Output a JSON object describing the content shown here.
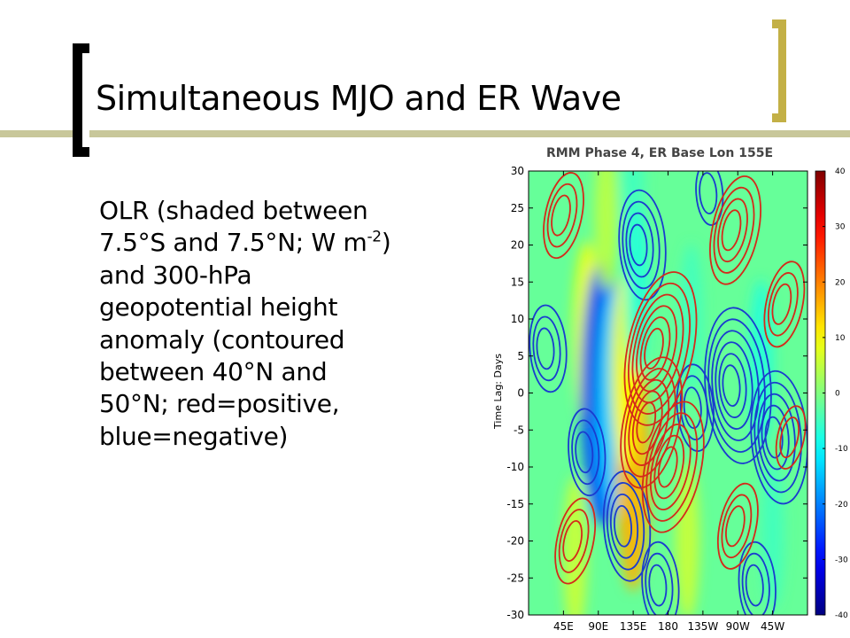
{
  "slide": {
    "title": "Simultaneous MJO and ER Wave",
    "body_lines": [
      {
        "text": "OLR (shaded between"
      },
      {
        "text": "7.5°S and 7.5°N; W m",
        "sup": "-2",
        "after": ")"
      },
      {
        "text": "and 300-hPa"
      },
      {
        "text": "geopotential height"
      },
      {
        "text": "anomaly (contoured"
      },
      {
        "text": "between 40°N and"
      },
      {
        "text": "50°N; red=positive,"
      },
      {
        "text": "blue=negative)"
      }
    ],
    "colors": {
      "title_bar": "#c8c79a",
      "right_bracket": "#c3b046",
      "left_bracket": "#000000"
    }
  },
  "chart_data": {
    "type": "heatmap",
    "title": "RMM Phase 4, ER Base Lon 155E",
    "xlabel": "",
    "ylabel": "Time Lag:  Days",
    "x_ticks": [
      "45E",
      "90E",
      "135E",
      "180",
      "135W",
      "90W",
      "45W"
    ],
    "x_tick_lons": [
      45,
      90,
      135,
      180,
      225,
      270,
      315
    ],
    "xlim": [
      0,
      360
    ],
    "y_ticks": [
      "30",
      "25",
      "20",
      "15",
      "10",
      "5",
      "0",
      "-5",
      "-10",
      "-15",
      "-20",
      "-25",
      "-30"
    ],
    "y_tick_values": [
      30,
      25,
      20,
      15,
      10,
      5,
      0,
      -5,
      -10,
      -15,
      -20,
      -25,
      -30
    ],
    "ylim": [
      -30,
      30
    ],
    "colorbar": {
      "ticks": [
        "40",
        "30",
        "20",
        "10",
        "0",
        "-10",
        "-20",
        "-30",
        "-40"
      ],
      "tick_values": [
        40,
        30,
        20,
        10,
        0,
        -10,
        -20,
        -30,
        -40
      ],
      "range": [
        -40,
        40
      ],
      "colormap": "jet"
    },
    "olr_features": [
      {
        "lon": 75,
        "lag": 8,
        "olr": 9
      },
      {
        "lon": 95,
        "lag": 0,
        "olr": -24
      },
      {
        "lon": 110,
        "lag": -1,
        "olr": -13
      },
      {
        "lon": 135,
        "lag": -10,
        "olr": 16
      },
      {
        "lon": 125,
        "lag": 3,
        "olr": 10
      },
      {
        "lon": 60,
        "lag": -22,
        "olr": 6
      },
      {
        "lon": 100,
        "lag": 24,
        "olr": 5
      },
      {
        "lon": 135,
        "lag": 27,
        "olr": -5
      },
      {
        "lon": 140,
        "lag": 14,
        "olr": -7
      },
      {
        "lon": 210,
        "lag": 10,
        "olr": -5
      },
      {
        "lon": 300,
        "lag": 4,
        "olr": -7
      },
      {
        "lon": 205,
        "lag": -20,
        "olr": 6
      },
      {
        "lon": 315,
        "lag": -19,
        "olr": -5
      }
    ],
    "height_contours": {
      "positive_color": "#d42a1a",
      "negative_color": "#1a3ccf",
      "positive_centers": [
        {
          "lon": 160,
          "lag": 6,
          "strength": 6
        },
        {
          "lon": 178,
          "lag": -10,
          "strength": 5
        },
        {
          "lon": 150,
          "lag": -4,
          "strength": 5
        },
        {
          "lon": 260,
          "lag": 22,
          "strength": 4
        },
        {
          "lon": 325,
          "lag": 12,
          "strength": 3
        },
        {
          "lon": 265,
          "lag": -18,
          "strength": 3
        },
        {
          "lon": 55,
          "lag": -20,
          "strength": 3
        },
        {
          "lon": 40,
          "lag": 24,
          "strength": 3
        },
        {
          "lon": 335,
          "lag": -6,
          "strength": 2
        }
      ],
      "negative_centers": [
        {
          "lon": 260,
          "lag": 1,
          "strength": 6
        },
        {
          "lon": 315,
          "lag": -6,
          "strength": 5
        },
        {
          "lon": 210,
          "lag": -2,
          "strength": 3
        },
        {
          "lon": 140,
          "lag": 20,
          "strength": 4
        },
        {
          "lon": 120,
          "lag": -18,
          "strength": 4
        },
        {
          "lon": 20,
          "lag": 6,
          "strength": 3
        },
        {
          "lon": 70,
          "lag": -8,
          "strength": 3
        },
        {
          "lon": 165,
          "lag": -26,
          "strength": 3
        },
        {
          "lon": 290,
          "lag": -26,
          "strength": 3
        },
        {
          "lon": 230,
          "lag": 27,
          "strength": 2
        }
      ]
    }
  }
}
